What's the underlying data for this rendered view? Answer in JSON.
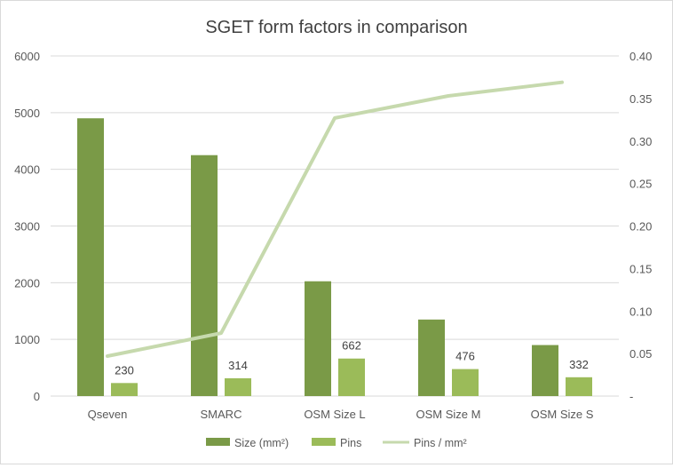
{
  "chart_data": {
    "type": "bar",
    "title": "SGET form factors in comparison",
    "categories": [
      "Qseven",
      "SMARC",
      "OSM Size L",
      "OSM Size M",
      "OSM Size S"
    ],
    "series": [
      {
        "name": "Size (mm²)",
        "type": "bar",
        "axis": "left",
        "color": "#7a9a47",
        "values": [
          4900,
          4250,
          2025,
          1350,
          900
        ]
      },
      {
        "name": "Pins",
        "type": "bar",
        "axis": "left",
        "color": "#9bbb59",
        "values": [
          230,
          314,
          662,
          476,
          332
        ]
      },
      {
        "name": "Pins / mm²",
        "type": "line",
        "axis": "right",
        "color": "#c6d9ad",
        "values": [
          0.047,
          0.074,
          0.327,
          0.353,
          0.369
        ]
      }
    ],
    "data_labels": [
      "230",
      "314",
      "662",
      "476",
      "332"
    ],
    "y_left": {
      "min": 0,
      "max": 6000,
      "ticks": [
        "0",
        "1000",
        "2000",
        "3000",
        "4000",
        "5000",
        "6000"
      ]
    },
    "y_right": {
      "min": 0,
      "max": 0.4,
      "ticks": [
        "-",
        "0.05",
        "0.10",
        "0.15",
        "0.20",
        "0.25",
        "0.30",
        "0.35",
        "0.40"
      ]
    },
    "grid": true,
    "legend_position": "bottom",
    "gridline_color": "#d9d9d9"
  }
}
